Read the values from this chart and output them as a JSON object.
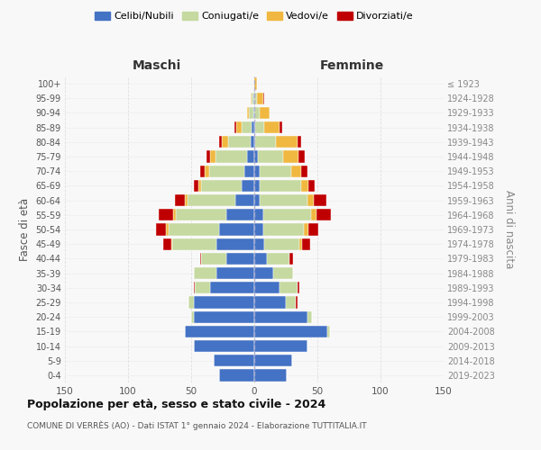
{
  "age_groups": [
    "0-4",
    "5-9",
    "10-14",
    "15-19",
    "20-24",
    "25-29",
    "30-34",
    "35-39",
    "40-44",
    "45-49",
    "50-54",
    "55-59",
    "60-64",
    "65-69",
    "70-74",
    "75-79",
    "80-84",
    "85-89",
    "90-94",
    "95-99",
    "100+"
  ],
  "birth_years": [
    "2019-2023",
    "2014-2018",
    "2009-2013",
    "2004-2008",
    "1999-2003",
    "1994-1998",
    "1989-1993",
    "1984-1988",
    "1979-1983",
    "1974-1978",
    "1969-1973",
    "1964-1968",
    "1959-1963",
    "1954-1958",
    "1949-1953",
    "1944-1948",
    "1939-1943",
    "1934-1938",
    "1929-1933",
    "1924-1928",
    "≤ 1923"
  ],
  "male": {
    "celibi": [
      28,
      32,
      48,
      55,
      48,
      48,
      35,
      30,
      22,
      30,
      28,
      22,
      15,
      10,
      8,
      6,
      3,
      2,
      1,
      1,
      0
    ],
    "coniugati": [
      0,
      0,
      0,
      0,
      2,
      4,
      12,
      18,
      20,
      35,
      40,
      40,
      38,
      32,
      28,
      25,
      18,
      8,
      3,
      1,
      0
    ],
    "vedovi": [
      0,
      0,
      0,
      0,
      0,
      0,
      0,
      0,
      0,
      1,
      2,
      2,
      2,
      2,
      3,
      4,
      5,
      4,
      2,
      1,
      0
    ],
    "divorziati": [
      0,
      0,
      0,
      0,
      0,
      0,
      1,
      0,
      1,
      6,
      8,
      12,
      8,
      4,
      4,
      3,
      2,
      2,
      0,
      0,
      0
    ]
  },
  "female": {
    "nubili": [
      26,
      30,
      42,
      58,
      42,
      25,
      20,
      15,
      10,
      8,
      7,
      7,
      4,
      4,
      4,
      3,
      1,
      1,
      0,
      0,
      0
    ],
    "coniugate": [
      0,
      0,
      0,
      2,
      4,
      8,
      14,
      16,
      18,
      28,
      32,
      38,
      38,
      33,
      25,
      20,
      16,
      7,
      4,
      2,
      0
    ],
    "vedove": [
      0,
      0,
      0,
      0,
      0,
      0,
      0,
      0,
      0,
      2,
      4,
      4,
      5,
      6,
      8,
      12,
      17,
      12,
      8,
      5,
      2
    ],
    "divorziate": [
      0,
      0,
      0,
      0,
      0,
      1,
      2,
      0,
      3,
      6,
      8,
      12,
      10,
      5,
      5,
      5,
      3,
      2,
      0,
      1,
      0
    ]
  },
  "colors": {
    "celibi": "#4472c4",
    "coniugati": "#c5d9a0",
    "vedovi": "#f0b840",
    "divorziati": "#c00000"
  },
  "legend_labels": [
    "Celibi/Nubili",
    "Coniugati/e",
    "Vedovi/e",
    "Divorziati/e"
  ],
  "title": "Popolazione per età, sesso e stato civile - 2024",
  "subtitle": "COMUNE DI VERRÈS (AO) - Dati ISTAT 1° gennaio 2024 - Elaborazione TUTTITALIA.IT",
  "xlabel_left": "Maschi",
  "xlabel_right": "Femmine",
  "ylabel_left": "Fasce di età",
  "ylabel_right": "Anni di nascita",
  "xlim": 150,
  "background": "#f8f8f8",
  "grid_color": "#dddddd"
}
